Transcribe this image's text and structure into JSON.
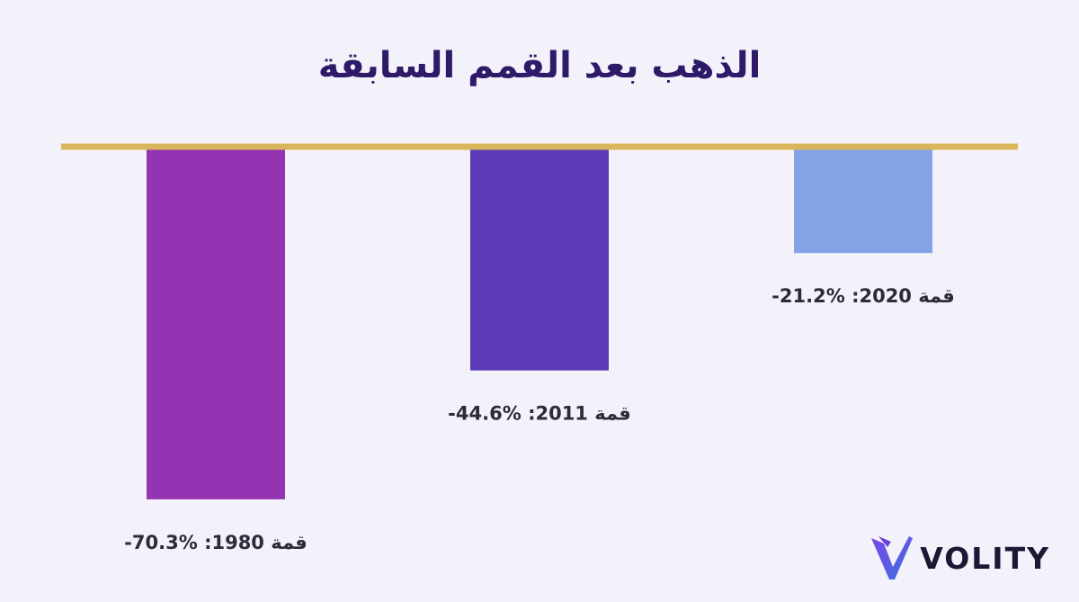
{
  "chart_data": {
    "type": "bar",
    "title": "الذهب بعد القمم السابقة",
    "categories": [
      "قمة 1980",
      "قمة 2011",
      "قمة 2020"
    ],
    "values": [
      -70.3,
      -44.6,
      -21.2
    ],
    "labels": [
      "قمة 1980:  %70.3-",
      "قمة 2011:  %44.6-",
      "قمة 2020:  %21.2-"
    ],
    "colors": [
      "#9534b3",
      "#5b3ab5",
      "#84a3e5"
    ],
    "baseline_color": "#d9b55c",
    "xlabel": "",
    "ylabel": "",
    "ylim": [
      -80,
      0
    ],
    "grid": false,
    "legend": "none"
  },
  "brand": {
    "name": "VOLITY",
    "logo_icon": "volity-v-logo-icon"
  }
}
